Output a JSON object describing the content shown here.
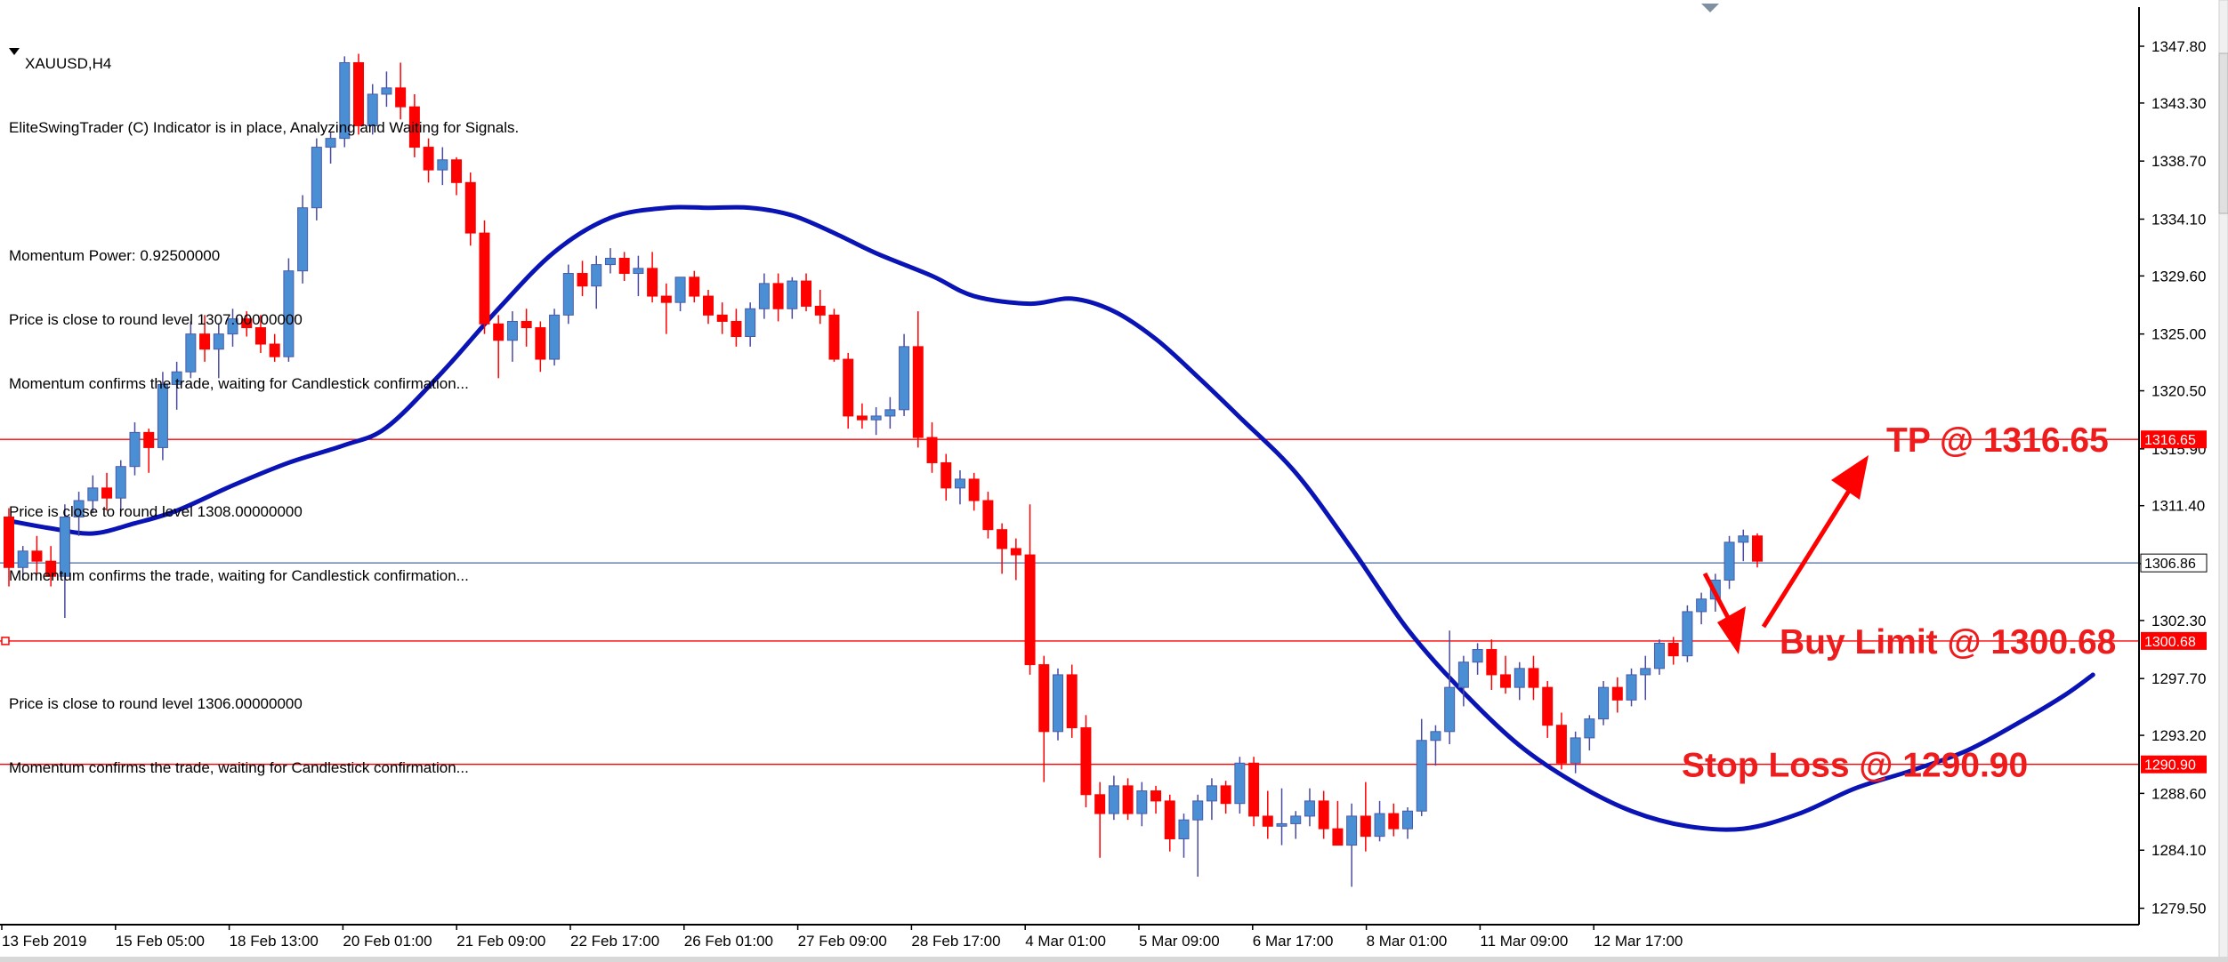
{
  "window": {
    "title": "XAUUSD,H4"
  },
  "indicator_panel": {
    "header": "EliteSwingTrader (C) Indicator is in place, Analyzing and Waiting for Signals.",
    "lines": [
      "Momentum Power: 0.92500000",
      "Price is close to round level 1307.00000000",
      "Momentum confirms the trade, waiting for Candlestick confirmation...",
      "",
      "Price is close to round level 1308.00000000",
      "Momentum confirms the trade, waiting for Candlestick confirmation...",
      "",
      "Price is close to round level 1306.00000000",
      "Momentum confirms the trade, waiting for Candlestick confirmation..."
    ]
  },
  "chart_data": {
    "type": "candlestick",
    "symbol": "XAUUSD",
    "timeframe": "H4",
    "ylim": [
      1278.2,
      1350.9
    ],
    "y_ticks": [
      "1347.80",
      "1343.30",
      "1338.70",
      "1334.10",
      "1329.60",
      "1325.00",
      "1320.50",
      "1315.90",
      "1311.40",
      "1306.80",
      "1302.30",
      "1297.70",
      "1293.20",
      "1288.60",
      "1284.10",
      "1279.50"
    ],
    "x_tick_labels": [
      "13 Feb 2019",
      "15 Feb 05:00",
      "18 Feb 13:00",
      "20 Feb 01:00",
      "21 Feb 09:00",
      "22 Feb 17:00",
      "26 Feb 01:00",
      "27 Feb 09:00",
      "28 Feb 17:00",
      "4 Mar 01:00",
      "5 Mar 09:00",
      "6 Mar 17:00",
      "8 Mar 01:00",
      "11 Mar 09:00",
      "12 Mar 17:00"
    ],
    "colors": {
      "bull": "#4a8fd4",
      "bear": "#ff0000",
      "ma": "#0a14b4",
      "level": "#ff0000",
      "current": "#4a6aa0"
    },
    "candles": [
      [
        1310.5,
        1311.2,
        1305.0,
        1306.5
      ],
      [
        1306.5,
        1308.2,
        1305.5,
        1307.8
      ],
      [
        1307.8,
        1309.0,
        1306.0,
        1307.0
      ],
      [
        1307.0,
        1308.2,
        1305.0,
        1305.8
      ],
      [
        1305.8,
        1311.5,
        1302.5,
        1310.5
      ],
      [
        1310.5,
        1312.5,
        1309.0,
        1311.8
      ],
      [
        1311.8,
        1313.8,
        1310.8,
        1312.8
      ],
      [
        1312.8,
        1314.0,
        1311.0,
        1312.0
      ],
      [
        1312.0,
        1315.0,
        1311.0,
        1314.5
      ],
      [
        1314.5,
        1318.0,
        1313.8,
        1317.2
      ],
      [
        1317.2,
        1317.5,
        1314.0,
        1316.0
      ],
      [
        1316.0,
        1322.0,
        1315.0,
        1321.0
      ],
      [
        1321.0,
        1322.8,
        1319.0,
        1322.0
      ],
      [
        1322.0,
        1326.0,
        1321.5,
        1325.0
      ],
      [
        1325.0,
        1326.5,
        1322.8,
        1323.8
      ],
      [
        1323.8,
        1325.8,
        1321.5,
        1325.0
      ],
      [
        1325.0,
        1327.0,
        1324.0,
        1326.2
      ],
      [
        1326.2,
        1326.8,
        1324.8,
        1325.5
      ],
      [
        1325.5,
        1326.5,
        1323.5,
        1324.2
      ],
      [
        1324.2,
        1325.0,
        1322.8,
        1323.2
      ],
      [
        1323.2,
        1331.0,
        1322.8,
        1330.0
      ],
      [
        1330.0,
        1336.0,
        1329.0,
        1335.0
      ],
      [
        1335.0,
        1340.5,
        1334.0,
        1339.8
      ],
      [
        1339.8,
        1341.0,
        1338.5,
        1340.5
      ],
      [
        1340.5,
        1347.0,
        1339.8,
        1346.5
      ],
      [
        1346.5,
        1347.2,
        1340.8,
        1341.5
      ],
      [
        1341.5,
        1344.8,
        1340.8,
        1344.0
      ],
      [
        1344.0,
        1345.8,
        1343.0,
        1344.5
      ],
      [
        1344.5,
        1346.5,
        1342.0,
        1343.0
      ],
      [
        1343.0,
        1344.0,
        1339.0,
        1339.8
      ],
      [
        1339.8,
        1340.5,
        1337.0,
        1338.0
      ],
      [
        1338.0,
        1339.8,
        1336.8,
        1338.8
      ],
      [
        1338.8,
        1339.0,
        1336.0,
        1337.0
      ],
      [
        1337.0,
        1337.8,
        1332.0,
        1333.0
      ],
      [
        1333.0,
        1334.0,
        1325.0,
        1325.8
      ],
      [
        1325.8,
        1326.5,
        1321.5,
        1324.5
      ],
      [
        1324.5,
        1326.8,
        1322.8,
        1326.0
      ],
      [
        1326.0,
        1327.0,
        1324.0,
        1325.5
      ],
      [
        1325.5,
        1326.0,
        1322.0,
        1323.0
      ],
      [
        1323.0,
        1327.0,
        1322.5,
        1326.5
      ],
      [
        1326.5,
        1330.5,
        1325.8,
        1329.8
      ],
      [
        1329.8,
        1330.8,
        1328.0,
        1328.8
      ],
      [
        1328.8,
        1331.2,
        1327.0,
        1330.5
      ],
      [
        1330.5,
        1331.8,
        1329.8,
        1331.0
      ],
      [
        1331.0,
        1331.5,
        1329.2,
        1329.8
      ],
      [
        1329.8,
        1331.2,
        1328.0,
        1330.2
      ],
      [
        1330.2,
        1331.5,
        1327.5,
        1328.0
      ],
      [
        1328.0,
        1329.0,
        1325.0,
        1327.5
      ],
      [
        1327.5,
        1329.5,
        1326.8,
        1329.5
      ],
      [
        1329.5,
        1330.0,
        1327.5,
        1328.0
      ],
      [
        1328.0,
        1328.5,
        1325.8,
        1326.5
      ],
      [
        1326.5,
        1327.5,
        1325.0,
        1326.0
      ],
      [
        1326.0,
        1327.0,
        1324.0,
        1324.8
      ],
      [
        1324.8,
        1327.5,
        1324.0,
        1327.0
      ],
      [
        1327.0,
        1329.8,
        1326.2,
        1329.0
      ],
      [
        1329.0,
        1329.8,
        1326.0,
        1327.0
      ],
      [
        1327.0,
        1329.5,
        1326.2,
        1329.2
      ],
      [
        1329.2,
        1329.8,
        1326.8,
        1327.2
      ],
      [
        1327.2,
        1328.5,
        1325.8,
        1326.5
      ],
      [
        1326.5,
        1327.0,
        1322.8,
        1323.0
      ],
      [
        1323.0,
        1323.5,
        1317.5,
        1318.5
      ],
      [
        1318.5,
        1319.5,
        1317.5,
        1318.2
      ],
      [
        1318.2,
        1319.2,
        1317.0,
        1318.5
      ],
      [
        1318.5,
        1320.0,
        1317.5,
        1319.0
      ],
      [
        1319.0,
        1325.0,
        1318.5,
        1324.0
      ],
      [
        1324.0,
        1326.8,
        1316.0,
        1316.8
      ],
      [
        1316.8,
        1318.0,
        1314.0,
        1314.8
      ],
      [
        1314.8,
        1315.5,
        1311.8,
        1312.8
      ],
      [
        1312.8,
        1314.2,
        1311.5,
        1313.5
      ],
      [
        1313.5,
        1314.0,
        1311.0,
        1311.8
      ],
      [
        1311.8,
        1312.5,
        1308.8,
        1309.5
      ],
      [
        1309.5,
        1310.0,
        1306.0,
        1308.0
      ],
      [
        1308.0,
        1308.8,
        1305.5,
        1307.5
      ],
      [
        1307.5,
        1311.5,
        1298.0,
        1298.8
      ],
      [
        1298.8,
        1299.5,
        1289.5,
        1293.5
      ],
      [
        1293.5,
        1298.5,
        1292.8,
        1298.0
      ],
      [
        1298.0,
        1298.8,
        1293.0,
        1293.8
      ],
      [
        1293.8,
        1294.8,
        1287.5,
        1288.5
      ],
      [
        1288.5,
        1289.5,
        1283.5,
        1287.0
      ],
      [
        1287.0,
        1290.0,
        1286.5,
        1289.2
      ],
      [
        1289.2,
        1289.8,
        1286.5,
        1287.0
      ],
      [
        1287.0,
        1289.5,
        1286.0,
        1288.8
      ],
      [
        1288.8,
        1289.2,
        1287.0,
        1288.0
      ],
      [
        1288.0,
        1288.5,
        1284.0,
        1285.0
      ],
      [
        1285.0,
        1287.0,
        1283.5,
        1286.5
      ],
      [
        1286.5,
        1288.5,
        1282.0,
        1288.0
      ],
      [
        1288.0,
        1289.8,
        1286.5,
        1289.2
      ],
      [
        1289.2,
        1289.6,
        1287.0,
        1287.8
      ],
      [
        1287.8,
        1291.5,
        1287.0,
        1291.0
      ],
      [
        1291.0,
        1291.5,
        1286.0,
        1286.8
      ],
      [
        1286.8,
        1288.8,
        1285.0,
        1286.0
      ],
      [
        1286.0,
        1289.0,
        1284.5,
        1286.2
      ],
      [
        1286.2,
        1287.2,
        1285.0,
        1286.8
      ],
      [
        1286.8,
        1289.0,
        1286.0,
        1288.0
      ],
      [
        1288.0,
        1288.8,
        1285.0,
        1285.8
      ],
      [
        1285.8,
        1288.0,
        1284.5,
        1284.5
      ],
      [
        1284.5,
        1287.8,
        1281.2,
        1286.8
      ],
      [
        1286.8,
        1289.5,
        1284.0,
        1285.2
      ],
      [
        1285.2,
        1288.0,
        1284.8,
        1287.0
      ],
      [
        1287.0,
        1287.8,
        1285.2,
        1285.8
      ],
      [
        1285.8,
        1287.5,
        1285.0,
        1287.2
      ],
      [
        1287.2,
        1294.5,
        1286.8,
        1292.8
      ],
      [
        1292.8,
        1294.0,
        1290.8,
        1293.5
      ],
      [
        1293.5,
        1301.5,
        1292.5,
        1297.0
      ],
      [
        1297.0,
        1299.5,
        1295.5,
        1299.0
      ],
      [
        1299.0,
        1300.5,
        1298.0,
        1300.0
      ],
      [
        1300.0,
        1300.8,
        1296.8,
        1298.0
      ],
      [
        1298.0,
        1299.5,
        1296.5,
        1297.0
      ],
      [
        1297.0,
        1299.0,
        1296.0,
        1298.5
      ],
      [
        1298.5,
        1299.5,
        1296.0,
        1297.0
      ],
      [
        1297.0,
        1297.5,
        1293.0,
        1294.0
      ],
      [
        1294.0,
        1295.0,
        1290.5,
        1291.0
      ],
      [
        1291.0,
        1293.5,
        1290.2,
        1293.0
      ],
      [
        1293.0,
        1294.8,
        1292.0,
        1294.5
      ],
      [
        1294.5,
        1297.5,
        1294.0,
        1297.0
      ],
      [
        1297.0,
        1297.8,
        1295.0,
        1296.0
      ],
      [
        1296.0,
        1298.5,
        1295.5,
        1298.0
      ],
      [
        1298.0,
        1299.5,
        1296.0,
        1298.5
      ],
      [
        1298.5,
        1300.8,
        1298.0,
        1300.5
      ],
      [
        1300.5,
        1301.0,
        1298.8,
        1299.5
      ],
      [
        1299.5,
        1303.5,
        1299.0,
        1303.0
      ],
      [
        1303.0,
        1304.5,
        1302.0,
        1304.0
      ],
      [
        1304.0,
        1306.0,
        1303.0,
        1305.5
      ],
      [
        1305.5,
        1309.0,
        1304.8,
        1308.5
      ],
      [
        1308.5,
        1309.5,
        1307.0,
        1309.0
      ],
      [
        1309.0,
        1309.2,
        1306.5,
        1307.0
      ]
    ],
    "moving_average": [
      [
        0,
        1310.2
      ],
      [
        3,
        1309.6
      ],
      [
        6,
        1309.2
      ],
      [
        9,
        1310.0
      ],
      [
        12,
        1311.0
      ],
      [
        16,
        1313.0
      ],
      [
        20,
        1314.8
      ],
      [
        24,
        1316.2
      ],
      [
        27,
        1317.6
      ],
      [
        31,
        1322.0
      ],
      [
        35,
        1327.0
      ],
      [
        39,
        1331.5
      ],
      [
        43,
        1334.2
      ],
      [
        47,
        1335.0
      ],
      [
        50,
        1335.0
      ],
      [
        53,
        1335.0
      ],
      [
        56,
        1334.4
      ],
      [
        59,
        1333.0
      ],
      [
        62,
        1331.4
      ],
      [
        66,
        1329.6
      ],
      [
        69,
        1328.0
      ],
      [
        73,
        1327.4
      ],
      [
        76,
        1327.8
      ],
      [
        79,
        1326.8
      ],
      [
        82,
        1324.6
      ],
      [
        85,
        1321.6
      ],
      [
        88,
        1318.4
      ],
      [
        92,
        1314.0
      ],
      [
        96,
        1308.0
      ],
      [
        100,
        1301.6
      ],
      [
        104,
        1296.6
      ],
      [
        108,
        1292.4
      ],
      [
        112,
        1289.4
      ],
      [
        116,
        1287.2
      ],
      [
        120,
        1286.0
      ],
      [
        124,
        1285.8
      ],
      [
        128,
        1287.0
      ],
      [
        132,
        1289.0
      ],
      [
        136,
        1290.4
      ],
      [
        140,
        1292.0
      ],
      [
        144,
        1294.4
      ],
      [
        147,
        1296.4
      ],
      [
        149,
        1298.0
      ]
    ],
    "levels": [
      {
        "price": 1316.65,
        "label": "TP @ 1316.65",
        "tag": "1316.65"
      },
      {
        "price": 1300.68,
        "label": "Buy Limit @ 1300.68",
        "tag": "1300.68"
      },
      {
        "price": 1290.9,
        "label": "Stop Loss @ 1290.90",
        "tag": "1290.90"
      }
    ],
    "current_price": {
      "price": 1306.86,
      "tag": "1306.86"
    }
  }
}
